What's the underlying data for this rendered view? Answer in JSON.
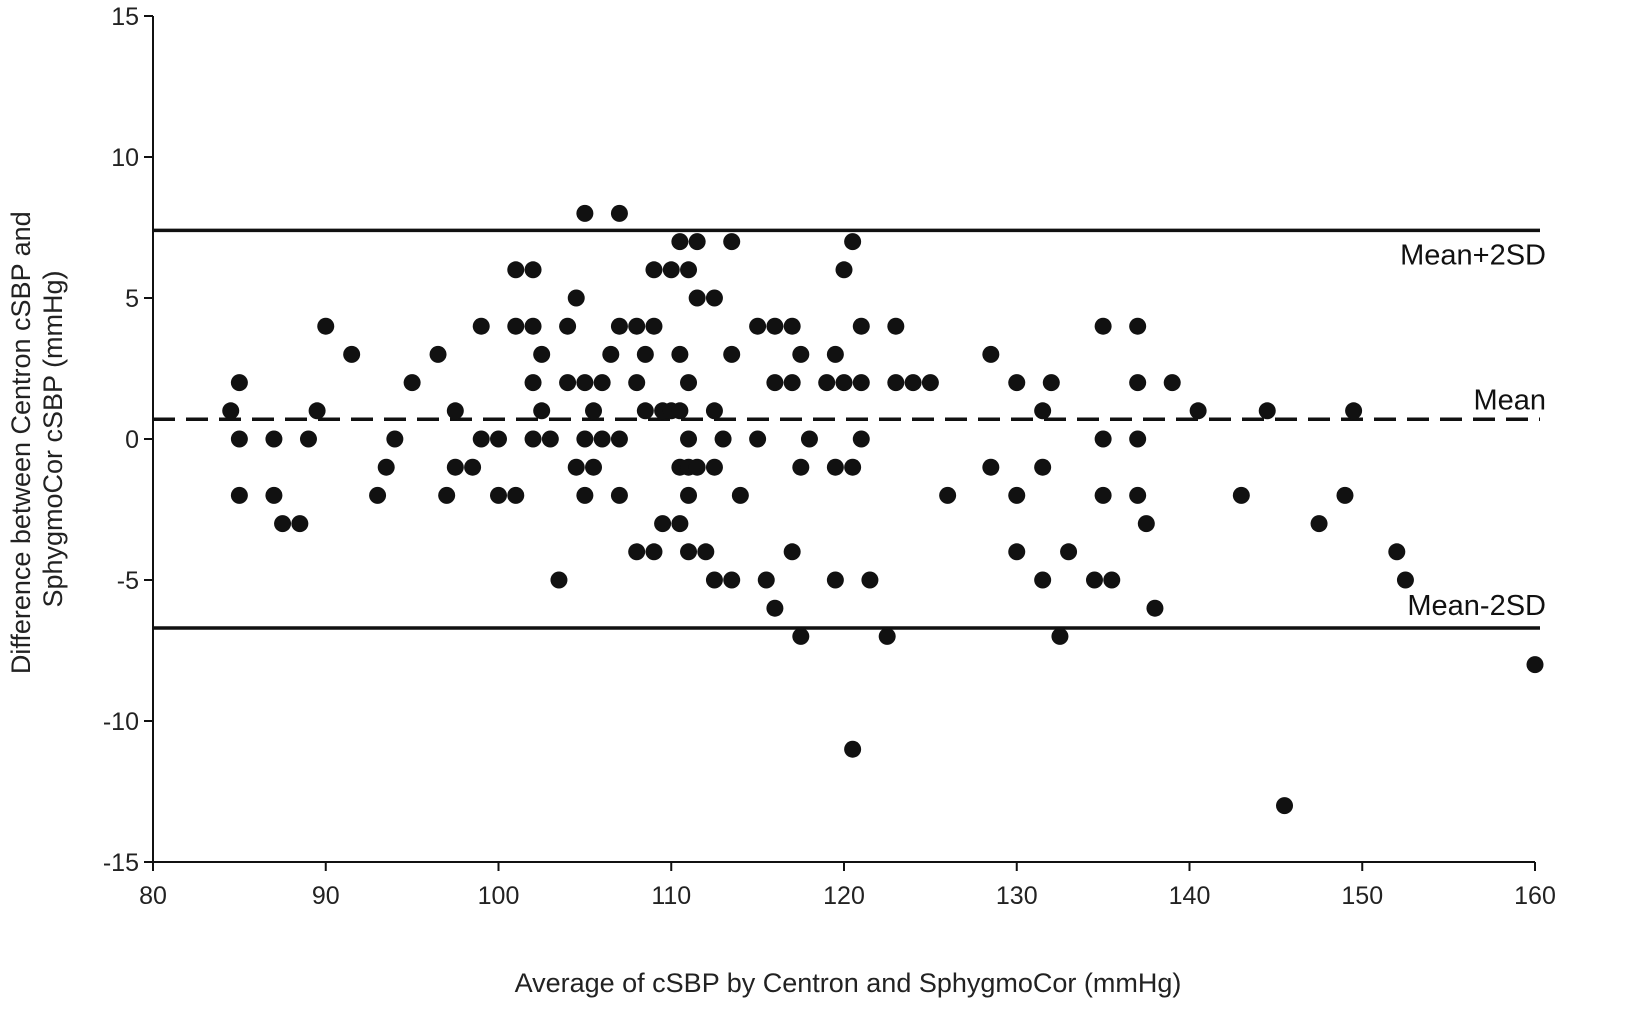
{
  "chart_data": {
    "type": "scatter",
    "title": "",
    "xlabel": "Average of cSBP by Centron and SphygmoCor (mmHg)",
    "ylabel_lines": [
      "Difference between Centron cSBP and",
      "SphygmoCor cSBP  (mmHg)"
    ],
    "xlim": [
      80,
      160
    ],
    "ylim": [
      -15,
      15
    ],
    "x_ticks": [
      80,
      90,
      100,
      110,
      120,
      130,
      140,
      150,
      160
    ],
    "y_ticks": [
      15,
      10,
      5,
      0,
      -5,
      -10,
      -15
    ],
    "grid": false,
    "point_color": "#111111",
    "reference_lines": [
      {
        "label": "Mean+2SD",
        "y": 7.4,
        "style": "solid"
      },
      {
        "label": "Mean",
        "y": 0.7,
        "style": "dashed"
      },
      {
        "label": "Mean-2SD",
        "y": -6.7,
        "style": "solid"
      }
    ],
    "points": [
      [
        84.5,
        1
      ],
      [
        85,
        2
      ],
      [
        85,
        0
      ],
      [
        85,
        -2
      ],
      [
        87,
        0
      ],
      [
        87,
        -2
      ],
      [
        87.5,
        -3
      ],
      [
        88.5,
        -3
      ],
      [
        89,
        0
      ],
      [
        89.5,
        1
      ],
      [
        90,
        4
      ],
      [
        91.5,
        3
      ],
      [
        93,
        -2
      ],
      [
        93.5,
        -1
      ],
      [
        94,
        0
      ],
      [
        95,
        2
      ],
      [
        96.5,
        3
      ],
      [
        97,
        -2
      ],
      [
        97.5,
        1
      ],
      [
        97.5,
        -1
      ],
      [
        98.5,
        -1
      ],
      [
        99,
        4
      ],
      [
        99,
        0
      ],
      [
        100,
        0
      ],
      [
        100,
        -2
      ],
      [
        101,
        6
      ],
      [
        101,
        4
      ],
      [
        101,
        -2
      ],
      [
        102,
        6
      ],
      [
        102,
        4
      ],
      [
        102,
        2
      ],
      [
        102,
        0
      ],
      [
        102.5,
        3
      ],
      [
        102.5,
        1
      ],
      [
        103,
        0
      ],
      [
        103.5,
        -5
      ],
      [
        104,
        4
      ],
      [
        104,
        2
      ],
      [
        104.5,
        5
      ],
      [
        104.5,
        -1
      ],
      [
        105,
        8
      ],
      [
        105,
        2
      ],
      [
        105,
        0
      ],
      [
        105,
        -2
      ],
      [
        105.5,
        1
      ],
      [
        105.5,
        -1
      ],
      [
        106,
        2
      ],
      [
        106,
        0
      ],
      [
        106.5,
        3
      ],
      [
        107,
        8
      ],
      [
        107,
        4
      ],
      [
        107,
        0
      ],
      [
        107,
        -2
      ],
      [
        108,
        4
      ],
      [
        108,
        2
      ],
      [
        108,
        -4
      ],
      [
        108.5,
        3
      ],
      [
        108.5,
        1
      ],
      [
        109,
        6
      ],
      [
        109,
        4
      ],
      [
        109,
        -4
      ],
      [
        109.5,
        1
      ],
      [
        109.5,
        -3
      ],
      [
        110,
        6
      ],
      [
        110,
        1
      ],
      [
        110.5,
        7
      ],
      [
        110.5,
        3
      ],
      [
        110.5,
        1
      ],
      [
        110.5,
        -1
      ],
      [
        110.5,
        -3
      ],
      [
        111,
        6
      ],
      [
        111,
        2
      ],
      [
        111,
        0
      ],
      [
        111,
        -1
      ],
      [
        111,
        -2
      ],
      [
        111,
        -4
      ],
      [
        111.5,
        7
      ],
      [
        111.5,
        5
      ],
      [
        111.5,
        -1
      ],
      [
        112,
        -4
      ],
      [
        112.5,
        5
      ],
      [
        112.5,
        1
      ],
      [
        112.5,
        -1
      ],
      [
        112.5,
        -5
      ],
      [
        113,
        0
      ],
      [
        113.5,
        7
      ],
      [
        113.5,
        3
      ],
      [
        113.5,
        -5
      ],
      [
        114,
        -2
      ],
      [
        115,
        4
      ],
      [
        115,
        0
      ],
      [
        115.5,
        -5
      ],
      [
        116,
        4
      ],
      [
        116,
        2
      ],
      [
        116,
        -6
      ],
      [
        117,
        4
      ],
      [
        117,
        2
      ],
      [
        117,
        -4
      ],
      [
        117.5,
        3
      ],
      [
        117.5,
        -1
      ],
      [
        117.5,
        -7
      ],
      [
        118,
        0
      ],
      [
        119,
        2
      ],
      [
        119.5,
        3
      ],
      [
        119.5,
        -1
      ],
      [
        119.5,
        -5
      ],
      [
        120,
        6
      ],
      [
        120,
        2
      ],
      [
        120.5,
        7
      ],
      [
        120.5,
        -1
      ],
      [
        120.5,
        -11
      ],
      [
        121,
        4
      ],
      [
        121,
        2
      ],
      [
        121,
        0
      ],
      [
        121.5,
        -5
      ],
      [
        122.5,
        -7
      ],
      [
        123,
        4
      ],
      [
        123,
        2
      ],
      [
        124,
        2
      ],
      [
        125,
        2
      ],
      [
        126,
        -2
      ],
      [
        128.5,
        3
      ],
      [
        128.5,
        -1
      ],
      [
        130,
        2
      ],
      [
        130,
        -2
      ],
      [
        130,
        -4
      ],
      [
        131.5,
        1
      ],
      [
        131.5,
        -1
      ],
      [
        131.5,
        -5
      ],
      [
        132,
        2
      ],
      [
        132.5,
        -7
      ],
      [
        133,
        -4
      ],
      [
        134.5,
        -5
      ],
      [
        135,
        4
      ],
      [
        135,
        0
      ],
      [
        135,
        -2
      ],
      [
        135.5,
        -5
      ],
      [
        137,
        4
      ],
      [
        137,
        2
      ],
      [
        137,
        0
      ],
      [
        137,
        -2
      ],
      [
        137.5,
        -3
      ],
      [
        138,
        -6
      ],
      [
        139,
        2
      ],
      [
        140.5,
        1
      ],
      [
        143,
        -2
      ],
      [
        144.5,
        1
      ],
      [
        145.5,
        -13
      ],
      [
        147.5,
        -3
      ],
      [
        149,
        -2
      ],
      [
        149.5,
        1
      ],
      [
        152,
        -4
      ],
      [
        152.5,
        -5
      ],
      [
        160,
        -8
      ]
    ]
  }
}
